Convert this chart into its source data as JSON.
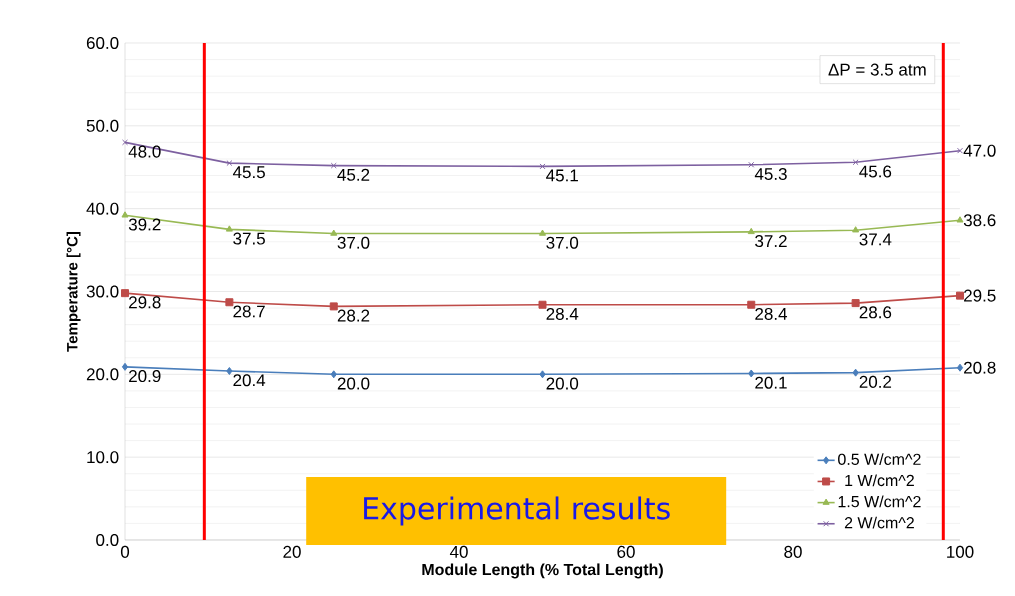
{
  "chart_data": {
    "type": "line",
    "xlabel": "Module Length (% Total Length)",
    "ylabel": "Temperature [°C]",
    "x": [
      0,
      12.5,
      25,
      50,
      75,
      87.5,
      100
    ],
    "series": [
      {
        "name": "0.5 W/cm^2",
        "color": "#4a7ebb",
        "marker": "diamond",
        "values": [
          20.9,
          20.4,
          20.0,
          20.0,
          20.1,
          20.2,
          20.8
        ],
        "value_labels": [
          "20.9",
          "20.4",
          "20.0",
          "20.0",
          "20.1",
          "20.2",
          "20.8"
        ]
      },
      {
        "name": "1 W/cm^2",
        "color": "#be4b48",
        "marker": "square",
        "values": [
          29.8,
          28.7,
          28.2,
          28.4,
          28.4,
          28.6,
          29.5
        ],
        "value_labels": [
          "29.8",
          "28.7",
          "28.2",
          "28.4",
          "28.4",
          "28.6",
          "29.5"
        ]
      },
      {
        "name": "1.5 W/cm^2",
        "color": "#98b954",
        "marker": "triangle",
        "values": [
          39.2,
          37.5,
          37.0,
          37.0,
          37.2,
          37.4,
          38.6
        ],
        "value_labels": [
          "39.2",
          "37.5",
          "37.0",
          "37.0",
          "37.2",
          "37.4",
          "38.6"
        ]
      },
      {
        "name": "2 W/cm^2",
        "color": "#7d60a0",
        "marker": "cross",
        "values": [
          48.0,
          45.5,
          45.2,
          45.1,
          45.3,
          45.6,
          47.0
        ],
        "value_labels": [
          "48.0",
          "45.5",
          "45.2",
          "45.1",
          "45.3",
          "45.6",
          "47.0"
        ]
      }
    ],
    "xlim": [
      0,
      100
    ],
    "xticks": [
      0,
      20,
      40,
      60,
      80,
      100
    ],
    "ylim": [
      0,
      60
    ],
    "yticks": [
      {
        "value": 0,
        "label": "0.0"
      },
      {
        "value": 10,
        "label": "10.0"
      },
      {
        "value": 20,
        "label": "20.0"
      },
      {
        "value": 30,
        "label": "30.0"
      },
      {
        "value": 40,
        "label": "40.0"
      },
      {
        "value": 50,
        "label": "50.0"
      },
      {
        "value": 60,
        "label": "60.0"
      }
    ],
    "ref_lines": [
      {
        "axis": "x",
        "value": 9.5,
        "color": "#ff0000"
      },
      {
        "axis": "x",
        "value": 98,
        "color": "#ff0000"
      }
    ],
    "annotations": [
      "ΔP = 3.5 atm",
      "Experimental results"
    ],
    "grid": "y",
    "legend": "bottom right",
    "line_style": "solid"
  }
}
